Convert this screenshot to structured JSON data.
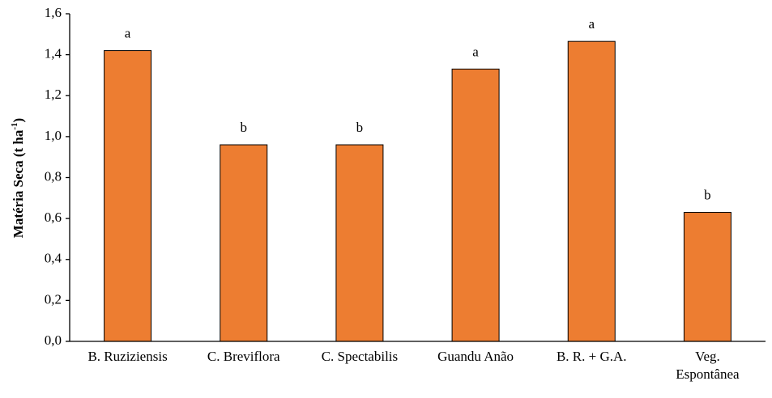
{
  "chart_data": {
    "type": "bar",
    "y_label": [
      "Matéria Seca (t ha",
      "-1",
      ")"
    ],
    "categories": [
      "B. Ruziziensis",
      "C. Breviflora",
      "C. Spectabilis",
      "Guandu Anão",
      "B. R. + G.A.",
      "Veg.\nEspontânea"
    ],
    "values": [
      1.42,
      0.96,
      0.96,
      1.33,
      1.465,
      0.63
    ],
    "letters": [
      "a",
      "b",
      "b",
      "a",
      "a",
      "b"
    ],
    "color": "#ed7d31",
    "ylim": [
      0,
      1.6
    ],
    "yticks": [
      {
        "value": 0,
        "label": "0,0"
      },
      {
        "value": 0.2,
        "label": "0,2"
      },
      {
        "value": 0.4,
        "label": "0,4"
      },
      {
        "value": 0.6,
        "label": "0,6"
      },
      {
        "value": 0.8,
        "label": "0,8"
      },
      {
        "value": 1.0,
        "label": "1,0"
      },
      {
        "value": 1.2,
        "label": "1,2"
      },
      {
        "value": 1.4,
        "label": "1,4"
      },
      {
        "value": 1.6,
        "label": "1,6"
      }
    ],
    "grid": false
  }
}
